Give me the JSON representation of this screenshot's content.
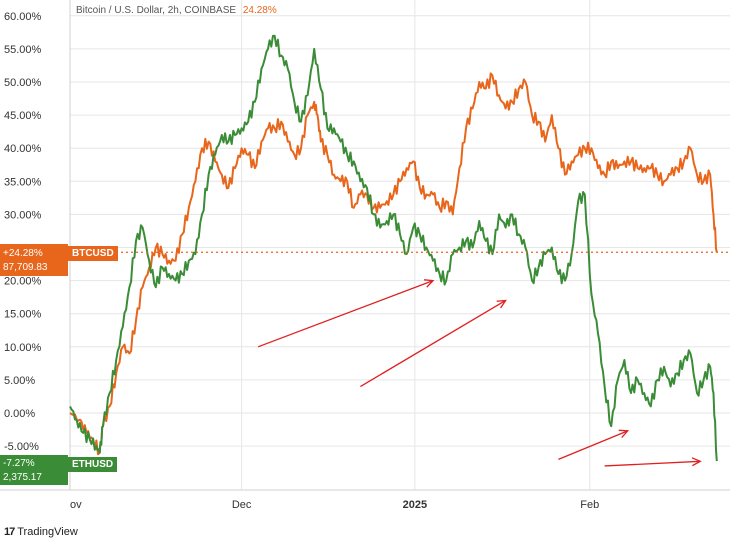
{
  "header": {
    "title": "Bitcoin / U.S. Dollar, 2h, COINBASE",
    "change": "24.28%"
  },
  "footer": {
    "brand": "TradingView",
    "logo_text": "17"
  },
  "badges": {
    "btc": {
      "symbol": "BTCUSD",
      "change": "+24.28%",
      "price": "87,709.83",
      "color": "#e8661c"
    },
    "eth": {
      "symbol": "ETHUSD",
      "change": "-7.27%",
      "price": "2,375.17",
      "color": "#3a8c36"
    }
  },
  "chart_data": {
    "type": "line",
    "x_tick_labels": [
      "ov",
      "Dec",
      "2025",
      "Feb"
    ],
    "y_tick_labels": [
      "60.00%",
      "55.00%",
      "50.00%",
      "45.00%",
      "40.00%",
      "35.00%",
      "30.00%",
      "25.00%",
      "20.00%",
      "15.00%",
      "10.00%",
      "5.00%",
      "0.00%",
      "-5.00%"
    ],
    "ylim": [
      -10,
      61.5
    ],
    "y_unit": "%",
    "grid": true,
    "current_level_line": 24.28,
    "series": [
      {
        "name": "BTCUSD",
        "color": "#e8661c",
        "points": [
          [
            0,
            0
          ],
          [
            3,
            -1
          ],
          [
            5,
            -3
          ],
          [
            7,
            -4
          ],
          [
            9,
            -6
          ],
          [
            10,
            -2
          ],
          [
            12,
            1
          ],
          [
            14,
            6
          ],
          [
            16,
            10
          ],
          [
            18,
            9
          ],
          [
            20,
            14
          ],
          [
            22,
            19
          ],
          [
            24,
            22
          ],
          [
            26,
            25
          ],
          [
            28,
            24
          ],
          [
            30,
            23
          ],
          [
            32,
            23
          ],
          [
            34,
            27
          ],
          [
            36,
            31
          ],
          [
            38,
            35
          ],
          [
            40,
            40
          ],
          [
            42,
            41
          ],
          [
            44,
            38
          ],
          [
            46,
            36
          ],
          [
            48,
            34
          ],
          [
            50,
            37
          ],
          [
            52,
            40
          ],
          [
            54,
            39
          ],
          [
            56,
            37
          ],
          [
            58,
            41
          ],
          [
            60,
            43
          ],
          [
            62,
            43
          ],
          [
            64,
            44
          ],
          [
            66,
            41
          ],
          [
            68,
            39
          ],
          [
            70,
            40
          ],
          [
            72,
            45
          ],
          [
            74,
            47
          ],
          [
            75,
            45
          ],
          [
            76,
            41
          ],
          [
            78,
            39
          ],
          [
            80,
            36
          ],
          [
            82,
            35
          ],
          [
            84,
            35
          ],
          [
            86,
            31
          ],
          [
            88,
            33
          ],
          [
            90,
            33
          ],
          [
            92,
            31
          ],
          [
            94,
            31
          ],
          [
            96,
            32
          ],
          [
            98,
            33
          ],
          [
            100,
            35
          ],
          [
            102,
            37
          ],
          [
            104,
            38
          ],
          [
            106,
            34
          ],
          [
            108,
            33
          ],
          [
            110,
            33
          ],
          [
            112,
            31
          ],
          [
            114,
            32
          ],
          [
            116,
            30
          ],
          [
            118,
            37
          ],
          [
            120,
            43
          ],
          [
            122,
            46
          ],
          [
            124,
            50
          ],
          [
            126,
            49
          ],
          [
            128,
            51
          ],
          [
            130,
            48
          ],
          [
            132,
            46
          ],
          [
            134,
            47
          ],
          [
            136,
            49
          ],
          [
            138,
            50
          ],
          [
            140,
            45
          ],
          [
            142,
            44
          ],
          [
            144,
            41
          ],
          [
            146,
            45
          ],
          [
            148,
            40
          ],
          [
            150,
            36
          ],
          [
            152,
            38
          ],
          [
            154,
            39
          ],
          [
            156,
            40
          ],
          [
            158,
            40
          ],
          [
            160,
            37
          ],
          [
            162,
            36
          ],
          [
            164,
            38
          ],
          [
            166,
            37
          ],
          [
            168,
            38
          ],
          [
            170,
            38
          ],
          [
            172,
            37
          ],
          [
            174,
            37
          ],
          [
            176,
            37
          ],
          [
            178,
            36
          ],
          [
            180,
            35
          ],
          [
            182,
            36
          ],
          [
            184,
            37
          ],
          [
            186,
            38
          ],
          [
            188,
            40
          ],
          [
            190,
            36
          ],
          [
            192,
            35
          ],
          [
            194,
            36
          ],
          [
            195,
            30
          ],
          [
            196,
            24.3
          ]
        ]
      },
      {
        "name": "ETHUSD",
        "color": "#3a8c36",
        "points": [
          [
            0,
            1
          ],
          [
            2,
            -1
          ],
          [
            4,
            -3
          ],
          [
            6,
            -4
          ],
          [
            8,
            -5
          ],
          [
            9,
            -6
          ],
          [
            10,
            -2
          ],
          [
            12,
            3
          ],
          [
            14,
            8
          ],
          [
            16,
            13
          ],
          [
            18,
            19
          ],
          [
            20,
            26
          ],
          [
            22,
            28
          ],
          [
            24,
            23
          ],
          [
            26,
            19
          ],
          [
            28,
            22
          ],
          [
            30,
            21
          ],
          [
            32,
            20
          ],
          [
            34,
            21
          ],
          [
            36,
            23
          ],
          [
            38,
            24
          ],
          [
            40,
            30
          ],
          [
            42,
            36
          ],
          [
            44,
            39
          ],
          [
            46,
            42
          ],
          [
            48,
            41
          ],
          [
            50,
            42
          ],
          [
            52,
            43
          ],
          [
            54,
            44
          ],
          [
            56,
            47
          ],
          [
            58,
            52
          ],
          [
            60,
            55
          ],
          [
            62,
            57
          ],
          [
            64,
            54
          ],
          [
            66,
            52
          ],
          [
            68,
            47
          ],
          [
            70,
            44
          ],
          [
            72,
            48
          ],
          [
            74,
            55
          ],
          [
            76,
            49
          ],
          [
            78,
            43
          ],
          [
            80,
            43
          ],
          [
            82,
            41
          ],
          [
            84,
            39
          ],
          [
            86,
            38
          ],
          [
            88,
            35
          ],
          [
            90,
            34
          ],
          [
            92,
            30
          ],
          [
            94,
            28
          ],
          [
            96,
            29
          ],
          [
            98,
            30
          ],
          [
            100,
            27
          ],
          [
            102,
            24
          ],
          [
            104,
            28
          ],
          [
            106,
            27
          ],
          [
            108,
            25
          ],
          [
            110,
            23
          ],
          [
            112,
            21
          ],
          [
            114,
            20
          ],
          [
            116,
            24
          ],
          [
            118,
            25
          ],
          [
            120,
            26
          ],
          [
            122,
            25
          ],
          [
            124,
            29
          ],
          [
            126,
            26
          ],
          [
            128,
            24
          ],
          [
            130,
            30
          ],
          [
            132,
            28
          ],
          [
            134,
            30
          ],
          [
            136,
            27
          ],
          [
            138,
            25
          ],
          [
            140,
            20
          ],
          [
            142,
            22
          ],
          [
            144,
            24
          ],
          [
            146,
            25
          ],
          [
            148,
            21
          ],
          [
            150,
            20
          ],
          [
            152,
            24
          ],
          [
            154,
            32
          ],
          [
            156,
            33
          ],
          [
            158,
            18
          ],
          [
            160,
            12
          ],
          [
            162,
            4
          ],
          [
            164,
            -2
          ],
          [
            166,
            5
          ],
          [
            168,
            8
          ],
          [
            170,
            3
          ],
          [
            172,
            5
          ],
          [
            174,
            3
          ],
          [
            176,
            1
          ],
          [
            178,
            5
          ],
          [
            180,
            7
          ],
          [
            182,
            4
          ],
          [
            184,
            6
          ],
          [
            186,
            8
          ],
          [
            188,
            9
          ],
          [
            190,
            3
          ],
          [
            192,
            5
          ],
          [
            194,
            7
          ],
          [
            195,
            3
          ],
          [
            196,
            -7.27
          ]
        ]
      }
    ],
    "arrows": [
      {
        "from": [
          57,
          10
        ],
        "to": [
          110,
          20
        ]
      },
      {
        "from": [
          88,
          4
        ],
        "to": [
          132,
          17
        ]
      },
      {
        "from": [
          148,
          -7
        ],
        "to": [
          169,
          -2.7
        ]
      },
      {
        "from": [
          162,
          -8
        ],
        "to": [
          191,
          -7.3
        ]
      }
    ],
    "arrow_color": "#e02020"
  }
}
